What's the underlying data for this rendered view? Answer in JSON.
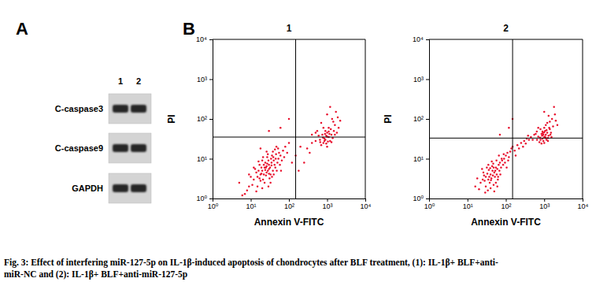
{
  "panel_labels": [
    "A",
    "B"
  ],
  "blot": {
    "lanes": [
      "1",
      "2"
    ],
    "proteins": [
      "C-caspase3",
      "C-caspase9",
      "GAPDH"
    ]
  },
  "chart_data": [
    {
      "type": "scatter",
      "title": "1",
      "x_label": "Annexin V-FITC",
      "y_label": "PI",
      "log": true,
      "grid": false,
      "color": "#e8112d",
      "xlim": [
        1,
        10000
      ],
      "ylim": [
        1,
        10000
      ],
      "xticks": [
        {
          "value": 1,
          "label": "10⁰"
        },
        {
          "value": 10,
          "label": "10¹"
        },
        {
          "value": 100,
          "label": "10²"
        },
        {
          "value": 1000,
          "label": "10³"
        },
        {
          "value": 10000,
          "label": "10⁴"
        }
      ],
      "yticks": [
        {
          "value": 1,
          "label": "10⁰"
        },
        {
          "value": 10,
          "label": "10¹"
        },
        {
          "value": 100,
          "label": "10²"
        },
        {
          "value": 1000,
          "label": "10³"
        },
        {
          "value": 10000,
          "label": "10⁴"
        }
      ],
      "quadrant_x": 150,
      "quadrant_y": 35,
      "x": [
        25,
        20,
        30,
        18,
        35,
        28,
        22,
        15,
        40,
        26,
        32,
        12,
        45,
        19,
        24,
        16,
        38,
        29,
        21,
        33,
        14,
        27,
        42,
        23,
        17,
        36,
        50,
        11,
        31,
        26,
        20,
        44,
        13,
        34,
        22,
        60,
        9,
        55,
        18,
        28,
        48,
        16,
        38,
        25,
        30,
        65,
        10,
        70,
        40,
        21,
        15,
        52,
        24,
        35,
        19,
        46,
        27,
        12,
        58,
        8,
        80,
        33,
        43,
        14,
        62,
        26,
        17,
        39,
        23,
        75,
        30,
        9,
        90,
        20,
        53,
        7,
        29,
        100,
        36,
        47,
        6,
        120,
        5,
        18,
        150,
        200,
        250,
        300,
        400,
        180,
        350,
        500,
        900,
        1100,
        800,
        1300,
        700,
        1000,
        1200,
        950,
        1500,
        850,
        1100,
        750,
        1400,
        1000,
        650,
        1600,
        1050,
        900,
        1250,
        600,
        1800,
        1150,
        800,
        950,
        1350,
        700,
        1700,
        1200,
        2000,
        500,
        1000,
        880,
        1300,
        550,
        1450,
        780,
        1900,
        2200,
        400,
        1000,
        1600,
        660,
        1100,
        850,
        60,
        100,
        30
      ],
      "values": [
        6,
        5,
        7,
        4,
        8,
        5,
        7,
        3.5,
        9,
        4.5,
        6,
        3,
        10,
        6,
        8,
        5,
        5,
        9,
        3,
        4,
        4.5,
        11,
        7,
        2.5,
        7,
        12,
        8,
        2.2,
        3.2,
        6.5,
        9,
        6,
        5.5,
        10,
        4,
        12,
        2,
        14,
        2.8,
        13,
        5,
        8.5,
        15,
        3.8,
        5.5,
        9,
        3.5,
        16,
        4,
        11,
        2,
        18,
        5.2,
        6.8,
        4.2,
        13,
        7.5,
        6,
        7,
        1.6,
        20,
        2.5,
        17,
        1.5,
        5,
        15,
        3.2,
        11,
        6,
        11,
        4.2,
        4,
        14,
        1.8,
        10,
        1.3,
        2,
        25,
        3.5,
        20,
        1.2,
        8,
        2.5,
        18,
        12,
        20,
        8,
        18,
        25,
        5,
        14,
        28,
        30,
        35,
        25,
        40,
        22,
        45,
        28,
        38,
        50,
        32,
        60,
        40,
        33,
        20,
        30,
        70,
        27,
        50,
        55,
        38,
        45,
        42,
        60,
        24,
        100,
        80,
        150,
        200,
        60,
        45,
        36,
        42,
        26,
        50,
        85,
        34,
        110,
        90,
        40,
        130,
        40,
        26,
        48,
        28,
        60,
        100,
        50
      ]
    },
    {
      "type": "scatter",
      "title": "2",
      "x_label": "Annexin V-FITC",
      "y_label": "PI",
      "log": true,
      "grid": false,
      "color": "#e8112d",
      "xlim": [
        1,
        10000
      ],
      "ylim": [
        1,
        10000
      ],
      "xticks": [
        {
          "value": 1,
          "label": "10⁰"
        },
        {
          "value": 10,
          "label": "10¹"
        },
        {
          "value": 100,
          "label": "10²"
        },
        {
          "value": 1000,
          "label": "10³"
        },
        {
          "value": 10000,
          "label": "10⁴"
        }
      ],
      "yticks": [
        {
          "value": 1,
          "label": "10⁰"
        },
        {
          "value": 10,
          "label": "10¹"
        },
        {
          "value": 100,
          "label": "10²"
        },
        {
          "value": 1000,
          "label": "10³"
        },
        {
          "value": 10000,
          "label": "10⁴"
        }
      ],
      "quadrant_x": 150,
      "quadrant_y": 33,
      "x": [
        40,
        35,
        45,
        30,
        50,
        38,
        55,
        28,
        42,
        60,
        33,
        48,
        25,
        65,
        36,
        52,
        44,
        30,
        70,
        40,
        58,
        22,
        75,
        47,
        34,
        80,
        26,
        62,
        39,
        90,
        55,
        20,
        68,
        43,
        100,
        32,
        85,
        50,
        110,
        46,
        24,
        95,
        37,
        120,
        60,
        18,
        130,
        72,
        29,
        57,
        140,
        41,
        66,
        105,
        35,
        53,
        78,
        27,
        88,
        150,
        48,
        16,
        63,
        115,
        170,
        200,
        180,
        250,
        220,
        300,
        280,
        350,
        400,
        330,
        450,
        500,
        380,
        550,
        1000,
        900,
        1100,
        800,
        1200,
        950,
        1050,
        700,
        1300,
        850,
        1150,
        1000,
        750,
        1400,
        900,
        1250,
        650,
        1100,
        1500,
        800,
        1000,
        950,
        1200,
        1350,
        600,
        1700,
        1050,
        880,
        1600,
        1300,
        1000,
        2000,
        1800,
        700,
        1150,
        920,
        1450,
        780,
        1250,
        1100,
        850,
        2200,
        1550,
        1000,
        640,
        1900,
        1400,
        70,
        120,
        150
      ],
      "values": [
        4,
        3,
        5,
        3.5,
        4.5,
        2.5,
        6,
        2.8,
        3.2,
        5.5,
        4.2,
        2.2,
        3,
        7,
        5.2,
        3.5,
        6.5,
        2,
        8,
        1.8,
        4,
        2.5,
        6,
        7.5,
        1.6,
        9,
        4.5,
        3,
        5.8,
        10,
        2.5,
        1.7,
        5,
        8.5,
        12,
        6,
        7,
        1.5,
        14,
        3.8,
        5.5,
        8,
        3.5,
        11,
        2,
        3.2,
        15,
        4,
        1.4,
        9,
        18,
        2.9,
        12,
        6,
        7,
        5,
        10,
        3.8,
        13,
        20,
        6,
        2,
        3.5,
        9,
        16,
        22,
        12,
        25,
        18,
        28,
        20,
        32,
        30,
        24,
        35,
        30,
        38,
        40,
        35,
        32,
        40,
        30,
        45,
        28,
        50,
        36,
        38,
        42,
        30,
        60,
        26,
        55,
        48,
        33,
        30,
        70,
        45,
        55,
        25,
        40,
        80,
        60,
        42,
        65,
        36,
        38,
        100,
        120,
        150,
        90,
        200,
        60,
        52,
        44,
        40,
        34,
        28,
        33,
        24,
        70,
        35,
        46,
        48,
        130,
        85,
        40,
        60,
        100
      ]
    }
  ],
  "caption": [
    "Fig. 3: Effect of interfering miR-127-5p on IL-1β-induced apoptosis of chondrocytes after BLF treatment, (1): IL-1β+ BLF+anti-",
    "miR-NC and (2): IL-1β+ BLF+anti-miR-127-5p"
  ]
}
